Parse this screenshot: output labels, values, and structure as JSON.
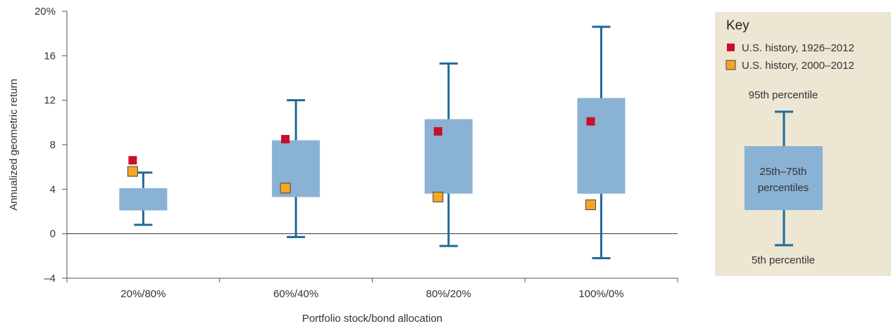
{
  "chart_data": {
    "type": "box",
    "xlabel": "Portfolio stock/bond allocation",
    "ylabel": "Annualized geometric return",
    "ylim": [
      -4,
      20
    ],
    "yticks": [
      -4,
      0,
      4,
      8,
      12,
      16,
      20
    ],
    "ytick_labels": [
      "–4",
      "0",
      "4",
      "8",
      "12",
      "16",
      "20%"
    ],
    "grid": false,
    "categories": [
      "20%/80%",
      "60%/40%",
      "80%/20%",
      "100%/0%"
    ],
    "boxes": [
      {
        "category": "20%/80%",
        "p5": 0.8,
        "p25": 2.1,
        "p75": 4.1,
        "p95": 5.5
      },
      {
        "category": "60%/40%",
        "p5": -0.3,
        "p25": 3.3,
        "p75": 8.4,
        "p95": 12.0
      },
      {
        "category": "80%/20%",
        "p5": -1.1,
        "p25": 3.6,
        "p75": 10.3,
        "p95": 15.3
      },
      {
        "category": "100%/0%",
        "p5": -2.2,
        "p25": 3.6,
        "p75": 12.2,
        "p95": 18.6
      }
    ],
    "series": [
      {
        "name": "U.S. history, 1926–2012",
        "marker": "square",
        "color": "#c8102e",
        "values": [
          6.6,
          8.5,
          9.2,
          10.1
        ]
      },
      {
        "name": "U.S. history, 2000–2012",
        "marker": "square-outlined",
        "color": "#f5a623",
        "values": [
          5.6,
          4.1,
          3.3,
          2.6
        ]
      }
    ],
    "box_color": "#8ab2d4",
    "whisker_color": "#1f6a9a",
    "legend": {
      "placement": "right",
      "title": "Key",
      "label_95": "95th percentile",
      "label_box_line1": "25th–75th",
      "label_box_line2": "percentiles",
      "label_5": "5th percentile",
      "background": "#ece6d3"
    }
  }
}
